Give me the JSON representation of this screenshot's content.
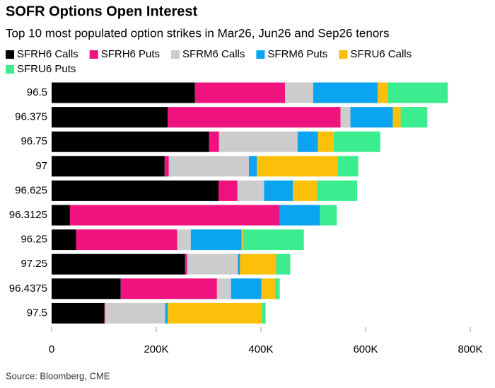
{
  "chart_data": {
    "type": "hbar_stacked",
    "title": "SOFR Options Open Interest",
    "subtitle": "Top 10 most populated option strikes in Mar26, Jun26 and Sep26 tenors",
    "source": "Source: Bloomberg, CME",
    "categories": [
      "96.5",
      "96.375",
      "96.75",
      "97",
      "96.625",
      "96.3125",
      "96.25",
      "97.25",
      "96.4375",
      "97.5"
    ],
    "series": [
      {
        "name": "SFRH6 Calls",
        "color": "#000000",
        "values": [
          274000,
          222000,
          301000,
          216000,
          319000,
          35000,
          47000,
          255000,
          132000,
          101000
        ]
      },
      {
        "name": "SFRH6 Puts",
        "color": "#f0137f",
        "values": [
          172000,
          330000,
          19000,
          8000,
          36000,
          401000,
          193000,
          4000,
          184000,
          1000
        ]
      },
      {
        "name": "SFRM6 Calls",
        "color": "#cccccc",
        "values": [
          54000,
          19000,
          150000,
          153000,
          51000,
          0,
          26000,
          97000,
          27000,
          115000
        ]
      },
      {
        "name": "SFRM6 Puts",
        "color": "#0ba4f0",
        "values": [
          123000,
          81000,
          39000,
          15000,
          55000,
          77000,
          97000,
          4000,
          58000,
          5000
        ]
      },
      {
        "name": "SFRU6 Calls",
        "color": "#fcbf0a",
        "values": [
          19000,
          15000,
          30000,
          155000,
          46000,
          0,
          3000,
          69000,
          26000,
          180000
        ]
      },
      {
        "name": "SFRU6 Puts",
        "color": "#3ced8f",
        "values": [
          115000,
          51000,
          89000,
          39000,
          77000,
          32000,
          116000,
          27000,
          9000,
          7000
        ]
      }
    ],
    "xlim": [
      0,
      800000
    ],
    "xticks": [
      0,
      {
        "value": 200000,
        "label": "200K"
      },
      {
        "value": 400000,
        "label": "400K"
      },
      {
        "value": 600000,
        "label": "600K"
      },
      {
        "value": 800000,
        "label": "800K"
      }
    ]
  }
}
